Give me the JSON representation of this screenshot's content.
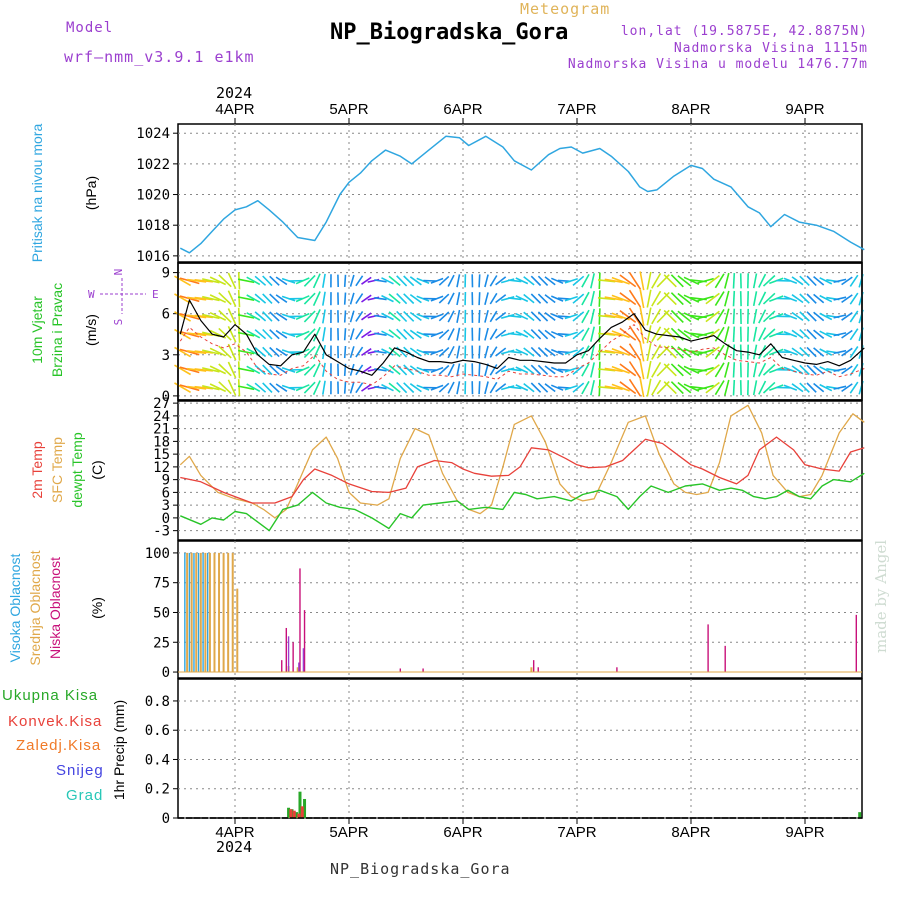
{
  "header": {
    "model_label": "Model",
    "model_name": "wrf–nmm_v3.9.1  e1km",
    "meteogram": "Meteogram",
    "station": "NP_Biogradska_Gora",
    "location": "lon,lat (19.5875E, 42.8875N)",
    "altitude": "Nadmorska Visina 1115m",
    "model_altitude": "Nadmorska Visina u modelu 1476.77m",
    "year": "2024",
    "footer": "NP_Biogradska_Gora",
    "credit": "made by Angel"
  },
  "colors": {
    "pressure": "#2fa6e0",
    "t2m": "#e8413a",
    "sfc": "#e0a84a",
    "dewpt": "#28c428",
    "high_cloud": "#2fa6e0",
    "mid_cloud": "#e0a84a",
    "low_cloud": "#c8117a",
    "total_precip": "#28a828",
    "conv_precip": "#e8413a",
    "ice_precip": "#f07a28",
    "snow": "#4444e0",
    "hail": "#27c7b7",
    "gust": "#000000",
    "purple": "#9b3fcf"
  },
  "chart_data": [
    {
      "id": "pressure",
      "type": "line",
      "ylabel_a": "Pritisak na nivou mora",
      "ylabel_b": "(hPa)",
      "ylim": [
        1015.6,
        1024.6
      ],
      "yticks": [
        "1016",
        "1018",
        "1020",
        "1022",
        "1024"
      ],
      "ytick_values": [
        1016,
        1018,
        1020,
        1022,
        1024
      ],
      "grid": true,
      "x_days": [
        "4APR",
        "5APR",
        "6APR",
        "7APR",
        "8APR",
        "9APR"
      ],
      "x_range_days": [
        -0.48,
        5.52
      ],
      "series": [
        {
          "x": [
            -0.48,
            -0.4,
            -0.3,
            -0.2,
            -0.1,
            0.0,
            0.1,
            0.2,
            0.3,
            0.42,
            0.55,
            0.7,
            0.8,
            0.92,
            1.0,
            1.1,
            1.2,
            1.32,
            1.45,
            1.55,
            1.7,
            1.85,
            1.97,
            2.05,
            2.2,
            2.35,
            2.45,
            2.6,
            2.75,
            2.85,
            2.95,
            3.05,
            3.2,
            3.3,
            3.45,
            3.55,
            3.62,
            3.7,
            3.85,
            4.0,
            4.1,
            4.2,
            4.35,
            4.5,
            4.6,
            4.7,
            4.82,
            4.95,
            5.1,
            5.25,
            5.4,
            5.52
          ],
          "y": [
            1016.5,
            1016.2,
            1016.8,
            1017.6,
            1018.4,
            1019.0,
            1019.2,
            1019.6,
            1019.0,
            1018.2,
            1017.2,
            1017.0,
            1018.2,
            1020.0,
            1020.8,
            1021.4,
            1022.2,
            1022.9,
            1022.5,
            1022.0,
            1022.9,
            1023.8,
            1023.7,
            1023.2,
            1023.8,
            1023.1,
            1022.2,
            1021.6,
            1022.6,
            1023.0,
            1023.1,
            1022.7,
            1023.0,
            1022.5,
            1021.5,
            1020.5,
            1020.2,
            1020.3,
            1021.2,
            1021.9,
            1021.7,
            1021.0,
            1020.5,
            1019.2,
            1018.8,
            1017.9,
            1018.7,
            1018.2,
            1018.0,
            1017.6,
            1016.9,
            1016.4
          ]
        }
      ]
    },
    {
      "id": "wind",
      "type": "line",
      "ylabel_a": "10m Vjetar",
      "ylabel_b": "Brzina i Pravac",
      "ylabel_c": "(m/s)",
      "ylim": [
        -0.3,
        9.7
      ],
      "yticks": [
        "0",
        "3",
        "6",
        "9"
      ],
      "ytick_values": [
        0,
        3,
        6,
        9
      ],
      "grid": true,
      "compass": {
        "n": "N",
        "s": "S",
        "w": "W",
        "e": "E"
      },
      "x_range_days": [
        -0.48,
        5.52
      ],
      "series": [
        {
          "name": "gust",
          "x": [
            -0.48,
            -0.4,
            -0.3,
            -0.2,
            -0.1,
            0.0,
            0.1,
            0.2,
            0.3,
            0.4,
            0.5,
            0.6,
            0.7,
            0.8,
            0.9,
            1.0,
            1.1,
            1.2,
            1.3,
            1.4,
            1.5,
            1.6,
            1.7,
            1.8,
            1.9,
            2.0,
            2.1,
            2.2,
            2.3,
            2.4,
            2.5,
            2.6,
            2.7,
            2.8,
            2.9,
            3.0,
            3.1,
            3.2,
            3.3,
            3.4,
            3.5,
            3.6,
            3.7,
            3.8,
            3.9,
            4.0,
            4.1,
            4.2,
            4.3,
            4.4,
            4.5,
            4.6,
            4.7,
            4.8,
            4.9,
            5.0,
            5.1,
            5.2,
            5.3,
            5.4,
            5.52
          ],
          "y": [
            4.5,
            7.0,
            5.5,
            4.5,
            4.3,
            5.2,
            4.5,
            3.0,
            2.3,
            2.2,
            3.0,
            3.2,
            4.5,
            3.0,
            2.5,
            2.0,
            1.8,
            1.5,
            2.4,
            3.5,
            3.2,
            2.8,
            2.5,
            2.5,
            2.4,
            2.6,
            2.5,
            2.3,
            2.0,
            2.8,
            2.6,
            2.6,
            2.5,
            2.4,
            2.4,
            3.0,
            3.3,
            4.2,
            5.0,
            5.4,
            6.0,
            4.8,
            4.5,
            4.4,
            4.3,
            4.0,
            4.2,
            4.4,
            3.8,
            3.3,
            3.2,
            3.0,
            3.8,
            2.8,
            2.6,
            2.4,
            2.3,
            2.5,
            2.2,
            2.6,
            3.5
          ]
        },
        {
          "name": "speed",
          "x": [
            -0.48,
            -0.4,
            -0.3,
            -0.2,
            -0.1,
            0.0,
            0.1,
            0.2,
            0.3,
            0.4,
            0.5,
            0.6,
            0.7,
            0.8,
            0.9,
            1.0,
            1.1,
            1.2,
            1.3,
            1.4,
            1.5,
            1.6,
            1.7,
            1.8,
            1.9,
            2.0,
            2.1,
            2.2,
            2.3,
            2.4,
            2.5,
            2.6,
            2.7,
            2.8,
            2.9,
            3.0,
            3.1,
            3.2,
            3.3,
            3.4,
            3.5,
            3.6,
            3.7,
            3.8,
            3.9,
            4.0,
            4.1,
            4.2,
            4.3,
            4.4,
            4.5,
            4.6,
            4.7,
            4.8,
            4.9,
            5.0,
            5.1,
            5.2,
            5.3,
            5.4,
            5.52
          ],
          "y": [
            4.0,
            5.0,
            4.3,
            3.8,
            3.5,
            3.8,
            3.2,
            2.0,
            1.6,
            1.5,
            2.0,
            2.2,
            3.0,
            1.8,
            1.2,
            1.0,
            1.0,
            0.8,
            1.4,
            2.2,
            2.0,
            1.8,
            1.5,
            1.5,
            1.4,
            1.6,
            1.5,
            1.4,
            1.2,
            1.8,
            1.6,
            1.6,
            1.5,
            1.4,
            1.4,
            2.0,
            2.4,
            3.2,
            4.0,
            4.5,
            5.2,
            4.2,
            3.6,
            3.5,
            3.4,
            3.2,
            3.4,
            3.5,
            3.0,
            2.6,
            2.5,
            2.4,
            2.8,
            2.0,
            1.8,
            1.6,
            1.5,
            1.8,
            1.4,
            1.6,
            2.0
          ]
        }
      ]
    },
    {
      "id": "temp",
      "type": "line",
      "ylabel_a": "2m Temp",
      "ylabel_b": "SFC Temp",
      "ylabel_c": "dewpt Temp",
      "ylabel_d": "(C)",
      "ylim": [
        -5.2,
        27.5
      ],
      "yticks": [
        "-3",
        "0",
        "3",
        "6",
        "9",
        "12",
        "15",
        "18",
        "21",
        "24",
        "27"
      ],
      "ytick_values": [
        -3,
        0,
        3,
        6,
        9,
        12,
        15,
        18,
        21,
        24,
        27
      ],
      "grid": true,
      "x_range_days": [
        -0.48,
        5.52
      ],
      "series": [
        {
          "name": "2m Temp",
          "x": [
            -0.48,
            -0.3,
            -0.1,
            0.0,
            0.15,
            0.35,
            0.5,
            0.6,
            0.7,
            0.85,
            1.0,
            1.2,
            1.35,
            1.5,
            1.6,
            1.75,
            1.9,
            2.0,
            2.1,
            2.25,
            2.4,
            2.5,
            2.6,
            2.75,
            2.9,
            3.0,
            3.1,
            3.25,
            3.4,
            3.5,
            3.6,
            3.75,
            3.9,
            4.0,
            4.1,
            4.25,
            4.4,
            4.5,
            4.6,
            4.75,
            4.9,
            5.0,
            5.15,
            5.3,
            5.4,
            5.52
          ],
          "y": [
            9.5,
            8.5,
            6.0,
            5.0,
            3.5,
            3.5,
            5.0,
            9.0,
            11.5,
            10.0,
            8.0,
            6.2,
            6.0,
            7.0,
            12.0,
            13.5,
            13.0,
            11.5,
            10.5,
            9.8,
            10.0,
            12.0,
            16.5,
            16.0,
            14.0,
            12.5,
            11.8,
            12.0,
            13.5,
            16.0,
            18.5,
            17.5,
            14.5,
            12.5,
            11.5,
            9.5,
            8.0,
            10.0,
            16.0,
            19.0,
            16.0,
            12.5,
            11.5,
            11.0,
            15.5,
            16.5
          ]
        },
        {
          "name": "SFC Temp",
          "x": [
            -0.48,
            -0.4,
            -0.3,
            -0.15,
            0.0,
            0.15,
            0.25,
            0.35,
            0.45,
            0.55,
            0.68,
            0.8,
            0.9,
            1.0,
            1.1,
            1.25,
            1.35,
            1.45,
            1.58,
            1.7,
            1.82,
            1.95,
            2.05,
            2.15,
            2.25,
            2.35,
            2.45,
            2.6,
            2.72,
            2.85,
            2.95,
            3.05,
            3.15,
            3.3,
            3.45,
            3.6,
            3.72,
            3.85,
            3.95,
            4.05,
            4.15,
            4.25,
            4.35,
            4.5,
            4.62,
            4.72,
            4.85,
            4.95,
            5.05,
            5.15,
            5.3,
            5.42,
            5.52
          ],
          "y": [
            12.5,
            14.5,
            10.0,
            6.0,
            4.5,
            3.5,
            2.0,
            0.0,
            2.0,
            8.0,
            16.0,
            19.0,
            14.0,
            6.0,
            3.5,
            3.0,
            4.5,
            14.0,
            21.0,
            19.5,
            10.5,
            4.0,
            2.0,
            1.0,
            3.0,
            12.0,
            22.0,
            24.0,
            18.0,
            8.0,
            5.0,
            4.0,
            4.5,
            13.0,
            22.5,
            24.0,
            15.0,
            8.0,
            6.0,
            5.5,
            6.0,
            13.0,
            24.0,
            26.5,
            20.0,
            10.0,
            6.0,
            5.0,
            5.5,
            10.0,
            20.0,
            24.5,
            22.5
          ]
        },
        {
          "name": "dewpt Temp",
          "x": [
            -0.48,
            -0.3,
            -0.2,
            -0.1,
            0.0,
            0.1,
            0.2,
            0.3,
            0.42,
            0.55,
            0.68,
            0.8,
            0.92,
            1.05,
            1.2,
            1.35,
            1.45,
            1.55,
            1.65,
            1.8,
            1.95,
            2.05,
            2.2,
            2.35,
            2.45,
            2.55,
            2.65,
            2.8,
            2.95,
            3.05,
            3.2,
            3.35,
            3.45,
            3.55,
            3.65,
            3.8,
            3.95,
            4.1,
            4.25,
            4.35,
            4.45,
            4.55,
            4.65,
            4.75,
            4.85,
            4.95,
            5.05,
            5.15,
            5.25,
            5.4,
            5.52
          ],
          "y": [
            0.5,
            -1.5,
            0.0,
            -0.5,
            1.5,
            1.0,
            -1.0,
            -3.0,
            2.0,
            3.0,
            6.0,
            3.5,
            2.5,
            2.0,
            0.0,
            -2.5,
            1.0,
            0.0,
            3.0,
            3.5,
            4.0,
            2.0,
            2.5,
            2.0,
            6.0,
            5.5,
            4.5,
            5.0,
            4.0,
            5.5,
            6.5,
            5.0,
            2.0,
            5.0,
            7.5,
            6.0,
            7.5,
            8.0,
            6.5,
            7.0,
            6.5,
            5.0,
            4.5,
            5.0,
            6.5,
            5.0,
            4.5,
            7.5,
            9.0,
            8.5,
            10.5
          ]
        }
      ]
    },
    {
      "id": "cloud",
      "type": "bar",
      "ylabel_a": "Visoka Oblacnost",
      "ylabel_b": "Srednja Oblacnost",
      "ylabel_c": "Niska Oblacnost",
      "ylabel_d": "(%)",
      "ylim": [
        -5,
        110
      ],
      "yticks": [
        "0",
        "25",
        "50",
        "75",
        "100"
      ],
      "ytick_values": [
        0,
        25,
        50,
        75,
        100
      ],
      "grid": true,
      "x_range_days": [
        -0.48,
        5.52
      ],
      "series": [
        {
          "name": "Visoka Oblacnost",
          "x": [
            -0.44,
            -0.4,
            -0.36,
            -0.32,
            -0.28,
            -0.24
          ],
          "values": [
            100,
            100,
            100,
            100,
            100,
            100
          ]
        },
        {
          "name": "Srednja Oblacnost",
          "x": [
            -0.42,
            -0.38,
            -0.34,
            -0.3,
            -0.26,
            -0.22,
            -0.18,
            -0.14,
            -0.1,
            -0.06,
            -0.02,
            0.02,
            0.47,
            0.55,
            2.6
          ],
          "values": [
            100,
            100,
            100,
            100,
            100,
            100,
            100,
            100,
            100,
            100,
            100,
            70,
            5,
            4,
            4
          ]
        },
        {
          "name": "Niska Oblacnost",
          "x": [
            0.41,
            0.45,
            0.51,
            0.57,
            0.61,
            1.45,
            1.65,
            2.62,
            2.66,
            3.35,
            4.15,
            4.3,
            5.45
          ],
          "values": [
            10,
            37,
            25,
            87,
            52,
            3,
            3,
            10,
            4,
            4,
            40,
            22,
            48
          ]
        },
        {
          "name": "Low cloud (purple)",
          "x": [
            0.47,
            0.56,
            0.6
          ],
          "values": [
            30,
            8,
            20
          ]
        }
      ]
    },
    {
      "id": "precip",
      "type": "bar",
      "ylabel": "1hr Precip (mm)",
      "ylim": [
        0,
        0.95
      ],
      "yticks": [
        "0",
        "0.2",
        "0.4",
        "0.6",
        "0.8"
      ],
      "ytick_values": [
        0,
        0.2,
        0.4,
        0.6,
        0.8
      ],
      "grid": true,
      "legend": [
        "Ukupna Kisa",
        "Konvek.Kisa",
        "Zaledj.Kisa",
        "Snijeg",
        "Grad"
      ],
      "x_range_days": [
        -0.48,
        5.52
      ],
      "series": [
        {
          "name": "Ukupna Kisa",
          "x": [
            0.47,
            0.5,
            0.54,
            0.57,
            0.61,
            5.48
          ],
          "values": [
            0.07,
            0.06,
            0.04,
            0.18,
            0.13,
            0.04
          ]
        },
        {
          "name": "Konvek.Kisa",
          "x": [
            0.49,
            0.52,
            0.56,
            0.59
          ],
          "values": [
            0.06,
            0.05,
            0.03,
            0.08
          ]
        }
      ]
    }
  ]
}
